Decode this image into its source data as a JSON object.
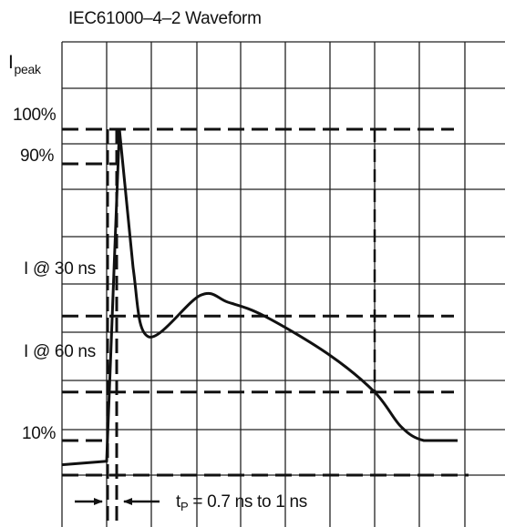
{
  "chart_data": {
    "type": "line",
    "title": "IEC61000–4–2 Waveform",
    "y_axis_label": {
      "base": "I",
      "subscript": "peak"
    },
    "y_tick_labels": [
      "100%",
      "90%",
      "I @ 30 ns",
      "I @ 60 ns",
      "10%"
    ],
    "annotation": {
      "prefix": "t",
      "subscript": "P",
      "suffix": " = 0.7 ns to 1 ns"
    },
    "grid": true,
    "series": [
      {
        "points": [
          {
            "t_ns": -5,
            "i_pct": 3
          },
          {
            "t_ns": 0,
            "i_pct": 4
          },
          {
            "t_ns": 0.8,
            "i_pct": 100
          },
          {
            "t_ns": 3,
            "i_pct": 60
          },
          {
            "t_ns": 7,
            "i_pct": 40
          },
          {
            "t_ns": 13,
            "i_pct": 52
          },
          {
            "t_ns": 20,
            "i_pct": 50
          },
          {
            "t_ns": 30,
            "i_pct": 46
          },
          {
            "t_ns": 45,
            "i_pct": 35
          },
          {
            "t_ns": 60,
            "i_pct": 24
          },
          {
            "t_ns": 66,
            "i_pct": 14
          },
          {
            "t_ns": 70,
            "i_pct": 10
          },
          {
            "t_ns": 80,
            "i_pct": 10
          }
        ]
      }
    ],
    "reference_levels": [
      {
        "label": "100%",
        "i_pct": 100
      },
      {
        "label": "90%",
        "i_pct": 90
      },
      {
        "label": "I @ 30 ns",
        "i_pct": 46
      },
      {
        "label": "I @ 60 ns",
        "i_pct": 24
      },
      {
        "label": "10%",
        "i_pct": 10
      }
    ],
    "colors": {
      "line": "#111111",
      "grid": "#222222",
      "background": "#ffffff"
    }
  }
}
